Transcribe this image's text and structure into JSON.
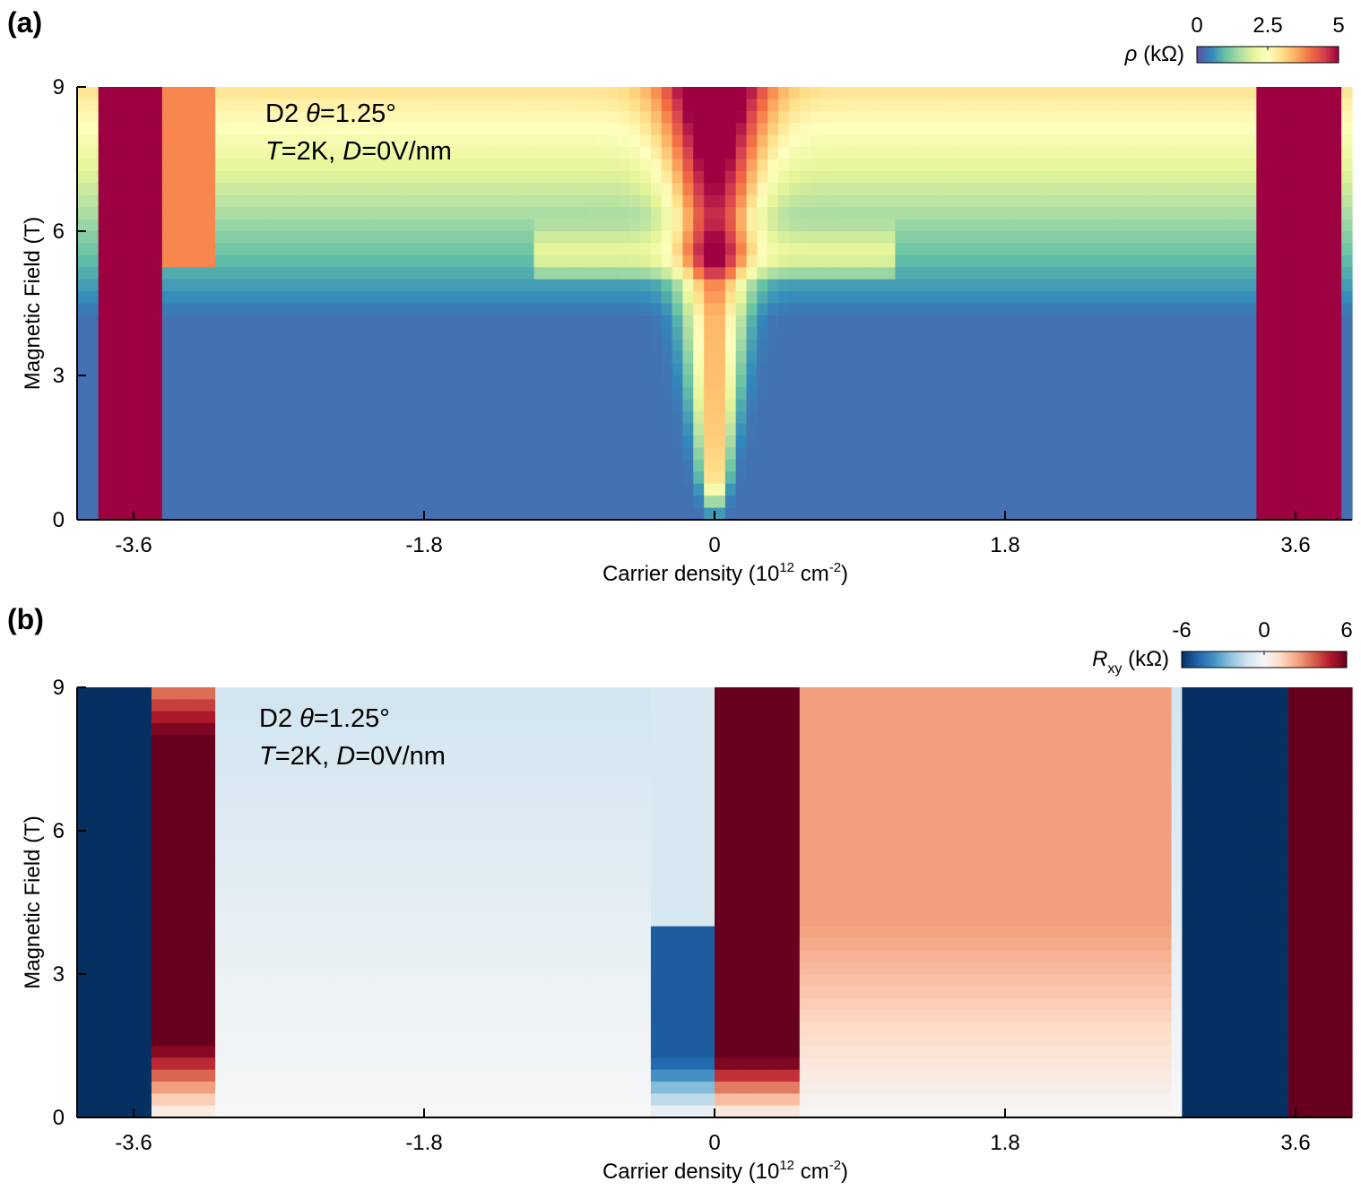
{
  "chart_data": [
    {
      "type": "heatmap",
      "panel_label": "(a)",
      "annotation": {
        "line1_plain": "D2 ",
        "line1_italic": "θ",
        "line1_rest": "=1.25°",
        "line2_t": "T",
        "line2_mid": "=2K, ",
        "line2_d": "D",
        "line2_rest": "=0V/nm"
      },
      "xlabel": "Carrier density (10",
      "xlabel_exp": "12",
      "xlabel_unit": " cm",
      "xlabel_unit_exp": "-2",
      "xlabel_close": ")",
      "ylabel": "Magnetic Field (T)",
      "xlim": [
        -3.95,
        3.95
      ],
      "ylim": [
        0,
        9
      ],
      "x_ticks": [
        -3.6,
        -1.8,
        0,
        1.8,
        3.6
      ],
      "x_tick_labels": [
        "-3.6",
        "-1.8",
        "0",
        "1.8",
        "3.6"
      ],
      "y_ticks": [
        0,
        3,
        6,
        9
      ],
      "y_tick_labels": [
        "0",
        "3",
        "6",
        "9"
      ],
      "colorbar": {
        "label_sym": "ρ",
        "label_unit": " (kΩ)",
        "min": 0,
        "max": 5,
        "ticks": [
          0,
          2.5,
          5
        ],
        "tick_labels": [
          "0",
          "2.5",
          "5"
        ],
        "colormap": "Spectral_r",
        "colors": [
          "#5e4fa2",
          "#3288bd",
          "#66c2a5",
          "#abdda4",
          "#e6f598",
          "#ffffbf",
          "#fee08b",
          "#fdae61",
          "#f46d43",
          "#d53e4f",
          "#9e0142"
        ]
      }
    },
    {
      "type": "heatmap",
      "panel_label": "(b)",
      "annotation": {
        "line1_plain": "D2 ",
        "line1_italic": "θ",
        "line1_rest": "=1.25°",
        "line2_t": "T",
        "line2_mid": "=2K, ",
        "line2_d": "D",
        "line2_rest": "=0V/nm"
      },
      "xlabel": "Carrier density (10",
      "xlabel_exp": "12",
      "xlabel_unit": " cm",
      "xlabel_unit_exp": "-2",
      "xlabel_close": ")",
      "ylabel": "Magnetic Field (T)",
      "xlim": [
        -3.95,
        3.95
      ],
      "ylim": [
        0,
        9
      ],
      "x_ticks": [
        -3.6,
        -1.8,
        0,
        1.8,
        3.6
      ],
      "x_tick_labels": [
        "-3.6",
        "-1.8",
        "0",
        "1.8",
        "3.6"
      ],
      "y_ticks": [
        0,
        3,
        6,
        9
      ],
      "y_tick_labels": [
        "0",
        "3",
        "6",
        "9"
      ],
      "colorbar": {
        "label_sym": "R",
        "label_sub": "xy",
        "label_unit": " (kΩ)",
        "min": -6,
        "max": 6,
        "ticks": [
          -6,
          0,
          6
        ],
        "tick_labels": [
          "-6",
          "0",
          "6"
        ],
        "colormap": "RdBu_r",
        "colors": [
          "#053061",
          "#2166ac",
          "#4393c3",
          "#92c5de",
          "#d1e5f0",
          "#f7f7f7",
          "#fddbc7",
          "#f4a582",
          "#d6604d",
          "#b2182b",
          "#67001f"
        ]
      }
    }
  ]
}
